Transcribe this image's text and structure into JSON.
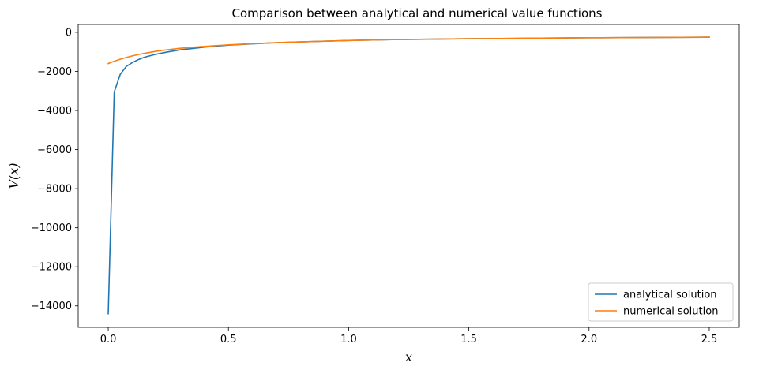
{
  "chart_data": {
    "type": "line",
    "title": "Comparison between analytical and numerical value functions",
    "xlabel": "x",
    "ylabel": "V(x)",
    "xlim": [
      -0.125,
      2.625
    ],
    "ylim": [
      -15100,
      400
    ],
    "xticks": [
      0.0,
      0.5,
      1.0,
      1.5,
      2.0,
      2.5
    ],
    "xtick_labels": [
      "0.0",
      "0.5",
      "1.0",
      "1.5",
      "2.0",
      "2.5"
    ],
    "yticks": [
      0,
      -2000,
      -4000,
      -6000,
      -8000,
      -10000,
      -12000,
      -14000
    ],
    "ytick_labels": [
      "0",
      "−2000",
      "−4000",
      "−6000",
      "−8000",
      "−10000",
      "−12000",
      "−14000"
    ],
    "grid": false,
    "legend_position": "lower-right",
    "series": [
      {
        "name": "analytical solution",
        "color": "#1f77b4",
        "x": [
          0.0,
          0.025,
          0.05,
          0.075,
          0.1,
          0.125,
          0.15,
          0.2,
          0.25,
          0.3,
          0.4,
          0.5,
          0.6,
          0.7,
          0.8,
          1.0,
          1.2,
          1.5,
          1.8,
          2.0,
          2.2,
          2.5
        ],
        "y": [
          -14400,
          -3050,
          -2150,
          -1750,
          -1550,
          -1400,
          -1280,
          -1120,
          -1000,
          -900,
          -760,
          -660,
          -590,
          -530,
          -490,
          -420,
          -370,
          -330,
          -300,
          -280,
          -270,
          -250
        ]
      },
      {
        "name": "numerical solution",
        "color": "#ff7f0e",
        "x": [
          0.0,
          0.025,
          0.05,
          0.075,
          0.1,
          0.125,
          0.15,
          0.2,
          0.25,
          0.3,
          0.4,
          0.5,
          0.6,
          0.7,
          0.8,
          1.0,
          1.2,
          1.5,
          1.8,
          2.0,
          2.2,
          2.5
        ],
        "y": [
          -1600,
          -1480,
          -1380,
          -1290,
          -1210,
          -1140,
          -1080,
          -970,
          -890,
          -820,
          -720,
          -640,
          -580,
          -530,
          -490,
          -420,
          -370,
          -330,
          -300,
          -280,
          -270,
          -250
        ]
      }
    ]
  }
}
